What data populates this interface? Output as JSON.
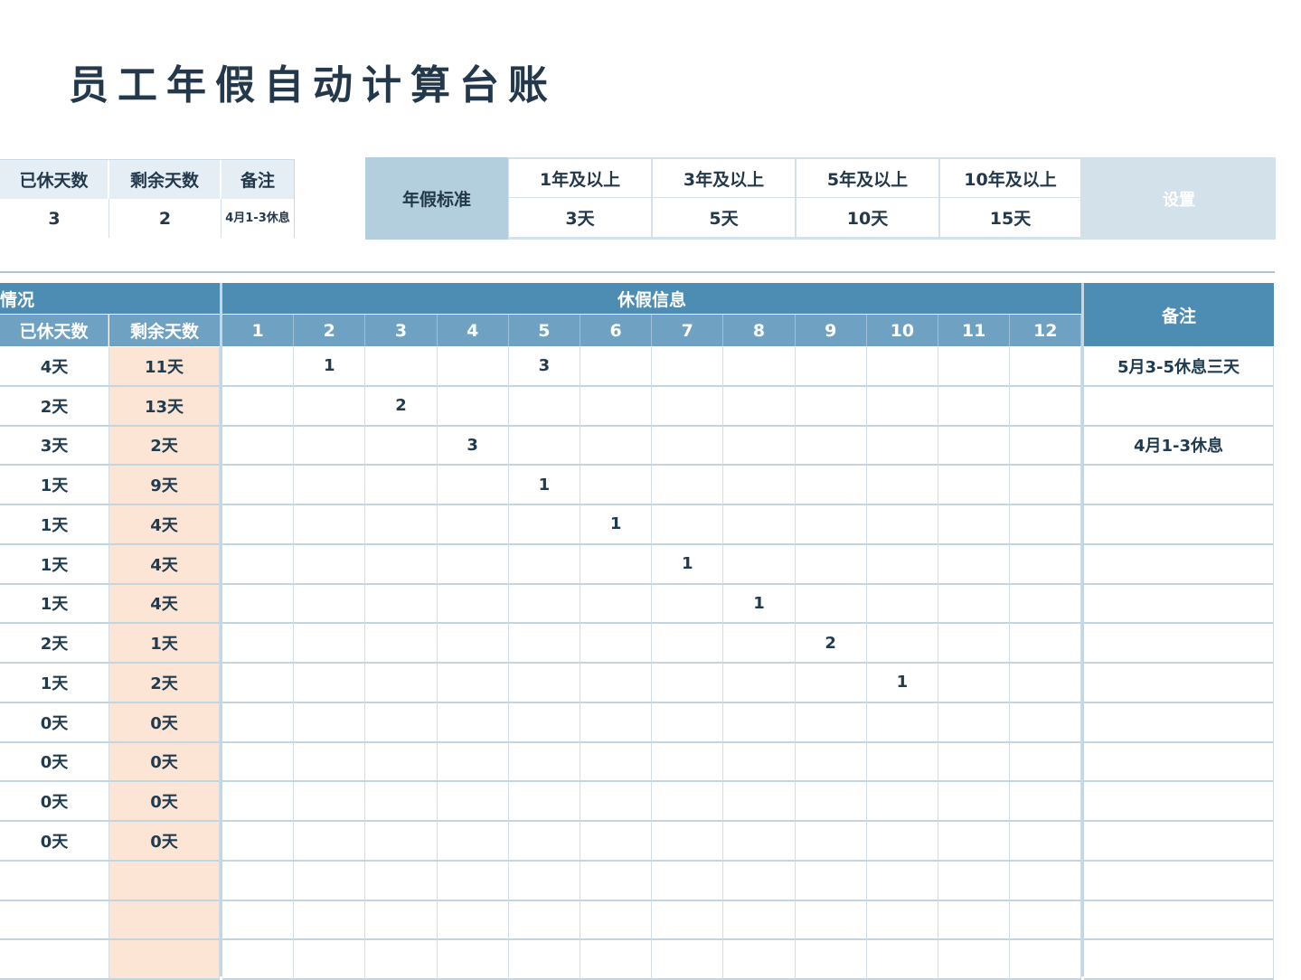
{
  "title": "员工年假自动计算台账",
  "summary": {
    "headers": [
      "已休天数",
      "剩余天数",
      "备注"
    ],
    "values": [
      "3",
      "2",
      "4月1-3休息"
    ]
  },
  "standard": {
    "label": "年假标准",
    "levels": [
      {
        "years": "1年及以上",
        "days": "3天"
      },
      {
        "years": "3年及以上",
        "days": "5天"
      },
      {
        "years": "5年及以上",
        "days": "10天"
      },
      {
        "years": "10年及以上",
        "days": "15天"
      }
    ],
    "button": "设置"
  },
  "grid": {
    "group_left": "情况",
    "group_mid": "休假信息",
    "note_header": "备注",
    "col_used": "已休天数",
    "col_remaining": "剩余天数",
    "months": [
      "1",
      "2",
      "3",
      "4",
      "5",
      "6",
      "7",
      "8",
      "9",
      "10",
      "11",
      "12"
    ],
    "rows": [
      {
        "used": "4天",
        "remaining": "11天",
        "months": [
          "",
          "1",
          "",
          "",
          "3",
          "",
          "",
          "",
          "",
          "",
          "",
          ""
        ],
        "note": "5月3-5休息三天"
      },
      {
        "used": "2天",
        "remaining": "13天",
        "months": [
          "",
          "",
          "2",
          "",
          "",
          "",
          "",
          "",
          "",
          "",
          "",
          ""
        ],
        "note": ""
      },
      {
        "used": "3天",
        "remaining": "2天",
        "months": [
          "",
          "",
          "",
          "3",
          "",
          "",
          "",
          "",
          "",
          "",
          "",
          ""
        ],
        "note": "4月1-3休息"
      },
      {
        "used": "1天",
        "remaining": "9天",
        "months": [
          "",
          "",
          "",
          "",
          "1",
          "",
          "",
          "",
          "",
          "",
          "",
          ""
        ],
        "note": ""
      },
      {
        "used": "1天",
        "remaining": "4天",
        "months": [
          "",
          "",
          "",
          "",
          "",
          "1",
          "",
          "",
          "",
          "",
          "",
          ""
        ],
        "note": ""
      },
      {
        "used": "1天",
        "remaining": "4天",
        "months": [
          "",
          "",
          "",
          "",
          "",
          "",
          "1",
          "",
          "",
          "",
          "",
          ""
        ],
        "note": ""
      },
      {
        "used": "1天",
        "remaining": "4天",
        "months": [
          "",
          "",
          "",
          "",
          "",
          "",
          "",
          "1",
          "",
          "",
          "",
          ""
        ],
        "note": ""
      },
      {
        "used": "2天",
        "remaining": "1天",
        "months": [
          "",
          "",
          "",
          "",
          "",
          "",
          "",
          "",
          "2",
          "",
          "",
          ""
        ],
        "note": ""
      },
      {
        "used": "1天",
        "remaining": "2天",
        "months": [
          "",
          "",
          "",
          "",
          "",
          "",
          "",
          "",
          "",
          "1",
          "",
          ""
        ],
        "note": ""
      },
      {
        "used": "0天",
        "remaining": "0天",
        "months": [
          "",
          "",
          "",
          "",
          "",
          "",
          "",
          "",
          "",
          "",
          "",
          ""
        ],
        "note": ""
      },
      {
        "used": "0天",
        "remaining": "0天",
        "months": [
          "",
          "",
          "",
          "",
          "",
          "",
          "",
          "",
          "",
          "",
          "",
          ""
        ],
        "note": ""
      },
      {
        "used": "0天",
        "remaining": "0天",
        "months": [
          "",
          "",
          "",
          "",
          "",
          "",
          "",
          "",
          "",
          "",
          "",
          ""
        ],
        "note": ""
      },
      {
        "used": "0天",
        "remaining": "0天",
        "months": [
          "",
          "",
          "",
          "",
          "",
          "",
          "",
          "",
          "",
          "",
          "",
          ""
        ],
        "note": ""
      },
      {
        "used": "",
        "remaining": "",
        "months": [
          "",
          "",
          "",
          "",
          "",
          "",
          "",
          "",
          "",
          "",
          "",
          ""
        ],
        "note": ""
      },
      {
        "used": "",
        "remaining": "",
        "months": [
          "",
          "",
          "",
          "",
          "",
          "",
          "",
          "",
          "",
          "",
          "",
          ""
        ],
        "note": ""
      },
      {
        "used": "",
        "remaining": "",
        "months": [
          "",
          "",
          "",
          "",
          "",
          "",
          "",
          "",
          "",
          "",
          "",
          ""
        ],
        "note": ""
      }
    ]
  },
  "colors": {
    "header_dark": "#4e8db3",
    "header_light": "#6fa1c2",
    "remaining_fill": "#fde5d5",
    "standard_label": "#b3cfde"
  }
}
